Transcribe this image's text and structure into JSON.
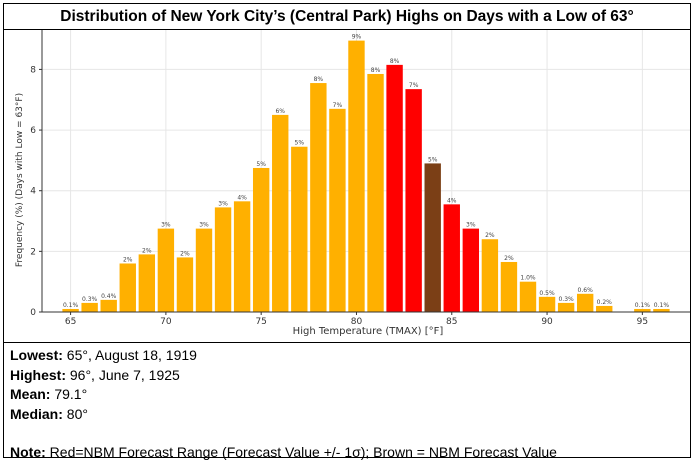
{
  "title": "Distribution of New York City’s (Central Park) Highs on Days with a Low of 63°",
  "chart_data": {
    "type": "bar",
    "xlabel": "High Temperature (TMAX) [°F]",
    "ylabel": "Frequency (%) (Days with Low = 63°F)",
    "xlim": [
      63.5,
      97.5
    ],
    "ylim": [
      0,
      9.3
    ],
    "x_ticks": [
      65,
      70,
      75,
      80,
      85,
      90,
      95
    ],
    "y_ticks": [
      0,
      2,
      4,
      6,
      8
    ],
    "grid": true,
    "colors": {
      "default": "#FFB000",
      "forecast_range": "#FF0000",
      "forecast_value": "#7B3F16"
    },
    "bars": [
      {
        "x": 65,
        "value": 0.1,
        "label": "0.1%",
        "category": "default"
      },
      {
        "x": 66,
        "value": 0.3,
        "label": "0.3%",
        "category": "default"
      },
      {
        "x": 67,
        "value": 0.4,
        "label": "0.4%",
        "category": "default"
      },
      {
        "x": 68,
        "value": 1.6,
        "label": "2%",
        "category": "default"
      },
      {
        "x": 69,
        "value": 1.9,
        "label": "2%",
        "category": "default"
      },
      {
        "x": 70,
        "value": 2.75,
        "label": "3%",
        "category": "default"
      },
      {
        "x": 71,
        "value": 1.8,
        "label": "2%",
        "category": "default"
      },
      {
        "x": 72,
        "value": 2.75,
        "label": "3%",
        "category": "default"
      },
      {
        "x": 73,
        "value": 3.45,
        "label": "3%",
        "category": "default"
      },
      {
        "x": 74,
        "value": 3.65,
        "label": "4%",
        "category": "default"
      },
      {
        "x": 75,
        "value": 4.75,
        "label": "5%",
        "category": "default"
      },
      {
        "x": 76,
        "value": 6.5,
        "label": "6%",
        "category": "default"
      },
      {
        "x": 77,
        "value": 5.45,
        "label": "5%",
        "category": "default"
      },
      {
        "x": 78,
        "value": 7.55,
        "label": "8%",
        "category": "default"
      },
      {
        "x": 79,
        "value": 6.7,
        "label": "7%",
        "category": "default"
      },
      {
        "x": 80,
        "value": 8.95,
        "label": "9%",
        "category": "default"
      },
      {
        "x": 81,
        "value": 7.85,
        "label": "8%",
        "category": "default"
      },
      {
        "x": 82,
        "value": 8.15,
        "label": "8%",
        "category": "forecast_range"
      },
      {
        "x": 83,
        "value": 7.35,
        "label": "7%",
        "category": "forecast_range"
      },
      {
        "x": 84,
        "value": 4.9,
        "label": "5%",
        "category": "forecast_value"
      },
      {
        "x": 85,
        "value": 3.55,
        "label": "4%",
        "category": "forecast_range"
      },
      {
        "x": 86,
        "value": 2.75,
        "label": "3%",
        "category": "forecast_range"
      },
      {
        "x": 87,
        "value": 2.4,
        "label": "2%",
        "category": "default"
      },
      {
        "x": 88,
        "value": 1.65,
        "label": "2%",
        "category": "default"
      },
      {
        "x": 89,
        "value": 1.0,
        "label": "1.0%",
        "category": "default"
      },
      {
        "x": 90,
        "value": 0.5,
        "label": "0.5%",
        "category": "default"
      },
      {
        "x": 91,
        "value": 0.3,
        "label": "0.3%",
        "category": "default"
      },
      {
        "x": 92,
        "value": 0.6,
        "label": "0.6%",
        "category": "default"
      },
      {
        "x": 93,
        "value": 0.2,
        "label": "0.2%",
        "category": "default"
      },
      {
        "x": 95,
        "value": 0.1,
        "label": "0.1%",
        "category": "default"
      },
      {
        "x": 96,
        "value": 0.1,
        "label": "0.1%",
        "category": "default"
      }
    ]
  },
  "stats": {
    "lowest_label": "Lowest:",
    "lowest_value": " 65°, August 18, 1919",
    "highest_label": "Highest:",
    "highest_value": " 96°, June 7, 1925",
    "mean_label": "Mean:",
    "mean_value": " 79.1°",
    "median_label": "Median:",
    "median_value": " 80°",
    "note_label": "Note:",
    "note_value": " Red=NBM Forecast Range (Forecast Value +/- 1σ); Brown = NBM Forecast Value"
  }
}
